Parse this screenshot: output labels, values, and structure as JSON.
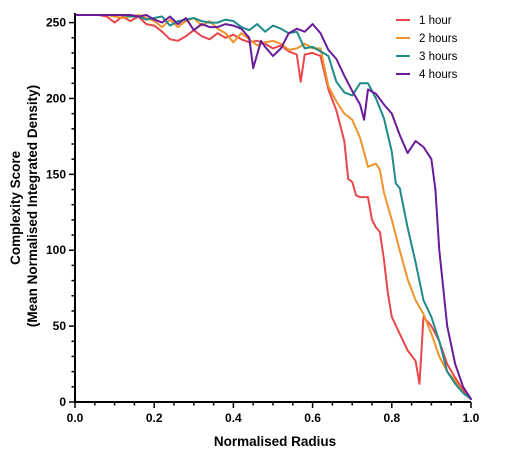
{
  "chart_data": {
    "type": "line",
    "title": "",
    "xlabel": "Normalised Radius",
    "ylabel_lines": [
      "Complexity Score",
      "(Mean Normalised Integrated Density)"
    ],
    "xlim": [
      0,
      1
    ],
    "ylim": [
      0,
      255
    ],
    "x_ticks": [
      0,
      0.2,
      0.4,
      0.6,
      0.8,
      1.0
    ],
    "x_tick_labels": [
      "0.0",
      "0.2",
      "0.4",
      "0.6",
      "0.8",
      "1.0"
    ],
    "y_ticks": [
      0,
      50,
      100,
      150,
      200,
      250
    ],
    "y_tick_labels": [
      "0",
      "50",
      "100",
      "150",
      "200",
      "250"
    ],
    "grid": false,
    "legend_position": "top-right",
    "series": [
      {
        "name": "1 hour",
        "color": "#e8474c",
        "points": [
          [
            0,
            255
          ],
          [
            0.02,
            255
          ],
          [
            0.04,
            255
          ],
          [
            0.06,
            255
          ],
          [
            0.08,
            254
          ],
          [
            0.1,
            250
          ],
          [
            0.12,
            254
          ],
          [
            0.14,
            251
          ],
          [
            0.16,
            254
          ],
          [
            0.18,
            249
          ],
          [
            0.2,
            248
          ],
          [
            0.22,
            244
          ],
          [
            0.24,
            239
          ],
          [
            0.26,
            238
          ],
          [
            0.28,
            241
          ],
          [
            0.3,
            245
          ],
          [
            0.32,
            241
          ],
          [
            0.34,
            239
          ],
          [
            0.36,
            243
          ],
          [
            0.38,
            240
          ],
          [
            0.4,
            242
          ],
          [
            0.42,
            239
          ],
          [
            0.44,
            237
          ],
          [
            0.46,
            238
          ],
          [
            0.48,
            236
          ],
          [
            0.5,
            233
          ],
          [
            0.52,
            235
          ],
          [
            0.54,
            231
          ],
          [
            0.56,
            229
          ],
          [
            0.57,
            211
          ],
          [
            0.58,
            229
          ],
          [
            0.6,
            230
          ],
          [
            0.62,
            228
          ],
          [
            0.64,
            206
          ],
          [
            0.66,
            192
          ],
          [
            0.68,
            172
          ],
          [
            0.69,
            147
          ],
          [
            0.7,
            145
          ],
          [
            0.71,
            136
          ],
          [
            0.72,
            135
          ],
          [
            0.74,
            135
          ],
          [
            0.75,
            120
          ],
          [
            0.76,
            115
          ],
          [
            0.77,
            112
          ],
          [
            0.78,
            94
          ],
          [
            0.79,
            72
          ],
          [
            0.8,
            56
          ],
          [
            0.82,
            45
          ],
          [
            0.84,
            34
          ],
          [
            0.86,
            27
          ],
          [
            0.87,
            12
          ],
          [
            0.88,
            56
          ],
          [
            0.9,
            50
          ],
          [
            0.92,
            40
          ],
          [
            0.94,
            25
          ],
          [
            0.96,
            16
          ],
          [
            0.98,
            8
          ],
          [
            1.0,
            2
          ]
        ]
      },
      {
        "name": "2 hours",
        "color": "#f0932b",
        "points": [
          [
            0,
            255
          ],
          [
            0.02,
            255
          ],
          [
            0.04,
            255
          ],
          [
            0.06,
            255
          ],
          [
            0.08,
            255
          ],
          [
            0.1,
            254
          ],
          [
            0.12,
            253
          ],
          [
            0.14,
            254
          ],
          [
            0.16,
            255
          ],
          [
            0.18,
            253
          ],
          [
            0.2,
            251
          ],
          [
            0.22,
            247
          ],
          [
            0.24,
            252
          ],
          [
            0.26,
            247
          ],
          [
            0.28,
            251
          ],
          [
            0.3,
            253
          ],
          [
            0.32,
            248
          ],
          [
            0.34,
            251
          ],
          [
            0.36,
            246
          ],
          [
            0.38,
            243
          ],
          [
            0.4,
            237
          ],
          [
            0.42,
            243
          ],
          [
            0.44,
            239
          ],
          [
            0.46,
            235
          ],
          [
            0.48,
            237
          ],
          [
            0.5,
            238
          ],
          [
            0.52,
            236
          ],
          [
            0.54,
            232
          ],
          [
            0.56,
            233
          ],
          [
            0.58,
            236
          ],
          [
            0.6,
            233
          ],
          [
            0.62,
            233
          ],
          [
            0.64,
            208
          ],
          [
            0.66,
            198
          ],
          [
            0.68,
            190
          ],
          [
            0.7,
            186
          ],
          [
            0.72,
            174
          ],
          [
            0.74,
            155
          ],
          [
            0.75,
            156
          ],
          [
            0.76,
            157
          ],
          [
            0.77,
            153
          ],
          [
            0.78,
            138
          ],
          [
            0.8,
            120
          ],
          [
            0.82,
            100
          ],
          [
            0.84,
            81
          ],
          [
            0.86,
            67
          ],
          [
            0.88,
            58
          ],
          [
            0.9,
            45
          ],
          [
            0.92,
            30
          ],
          [
            0.94,
            20
          ],
          [
            0.96,
            14
          ],
          [
            0.98,
            6
          ],
          [
            1.0,
            2
          ]
        ]
      },
      {
        "name": "3 hours",
        "color": "#1f8a8a",
        "points": [
          [
            0,
            255
          ],
          [
            0.02,
            255
          ],
          [
            0.04,
            255
          ],
          [
            0.06,
            255
          ],
          [
            0.08,
            255
          ],
          [
            0.1,
            255
          ],
          [
            0.12,
            255
          ],
          [
            0.14,
            254
          ],
          [
            0.16,
            254
          ],
          [
            0.18,
            252
          ],
          [
            0.2,
            253
          ],
          [
            0.22,
            254
          ],
          [
            0.24,
            248
          ],
          [
            0.26,
            251
          ],
          [
            0.28,
            252
          ],
          [
            0.3,
            253
          ],
          [
            0.32,
            251
          ],
          [
            0.34,
            250
          ],
          [
            0.36,
            250
          ],
          [
            0.38,
            252
          ],
          [
            0.4,
            251
          ],
          [
            0.42,
            247
          ],
          [
            0.44,
            245
          ],
          [
            0.46,
            249
          ],
          [
            0.48,
            244
          ],
          [
            0.5,
            248
          ],
          [
            0.52,
            246
          ],
          [
            0.54,
            243
          ],
          [
            0.56,
            244
          ],
          [
            0.58,
            233
          ],
          [
            0.6,
            234
          ],
          [
            0.62,
            231
          ],
          [
            0.64,
            228
          ],
          [
            0.66,
            211
          ],
          [
            0.68,
            204
          ],
          [
            0.7,
            202
          ],
          [
            0.72,
            210
          ],
          [
            0.74,
            210
          ],
          [
            0.76,
            200
          ],
          [
            0.78,
            187
          ],
          [
            0.8,
            165
          ],
          [
            0.81,
            144
          ],
          [
            0.82,
            141
          ],
          [
            0.84,
            115
          ],
          [
            0.86,
            92
          ],
          [
            0.88,
            67
          ],
          [
            0.9,
            56
          ],
          [
            0.92,
            40
          ],
          [
            0.94,
            20
          ],
          [
            0.96,
            12
          ],
          [
            0.98,
            6
          ],
          [
            1.0,
            2
          ]
        ]
      },
      {
        "name": "4 hours",
        "color": "#6a1b9a",
        "points": [
          [
            0,
            255
          ],
          [
            0.02,
            255
          ],
          [
            0.04,
            255
          ],
          [
            0.06,
            255
          ],
          [
            0.08,
            255
          ],
          [
            0.1,
            255
          ],
          [
            0.12,
            255
          ],
          [
            0.14,
            255
          ],
          [
            0.16,
            254
          ],
          [
            0.18,
            255
          ],
          [
            0.2,
            252
          ],
          [
            0.22,
            250
          ],
          [
            0.24,
            254
          ],
          [
            0.26,
            249
          ],
          [
            0.28,
            253
          ],
          [
            0.3,
            245
          ],
          [
            0.32,
            249
          ],
          [
            0.34,
            247
          ],
          [
            0.36,
            247
          ],
          [
            0.38,
            249
          ],
          [
            0.4,
            248
          ],
          [
            0.42,
            246
          ],
          [
            0.44,
            240
          ],
          [
            0.45,
            220
          ],
          [
            0.47,
            238
          ],
          [
            0.48,
            234
          ],
          [
            0.5,
            228
          ],
          [
            0.52,
            233
          ],
          [
            0.54,
            243
          ],
          [
            0.56,
            246
          ],
          [
            0.58,
            244
          ],
          [
            0.6,
            249
          ],
          [
            0.62,
            243
          ],
          [
            0.64,
            232
          ],
          [
            0.66,
            226
          ],
          [
            0.68,
            215
          ],
          [
            0.7,
            205
          ],
          [
            0.72,
            196
          ],
          [
            0.73,
            186
          ],
          [
            0.74,
            206
          ],
          [
            0.76,
            203
          ],
          [
            0.78,
            196
          ],
          [
            0.8,
            190
          ],
          [
            0.82,
            176
          ],
          [
            0.84,
            164
          ],
          [
            0.86,
            172
          ],
          [
            0.88,
            168
          ],
          [
            0.9,
            160
          ],
          [
            0.91,
            140
          ],
          [
            0.92,
            100
          ],
          [
            0.94,
            50
          ],
          [
            0.96,
            25
          ],
          [
            0.98,
            10
          ],
          [
            1.0,
            2
          ]
        ]
      }
    ]
  }
}
